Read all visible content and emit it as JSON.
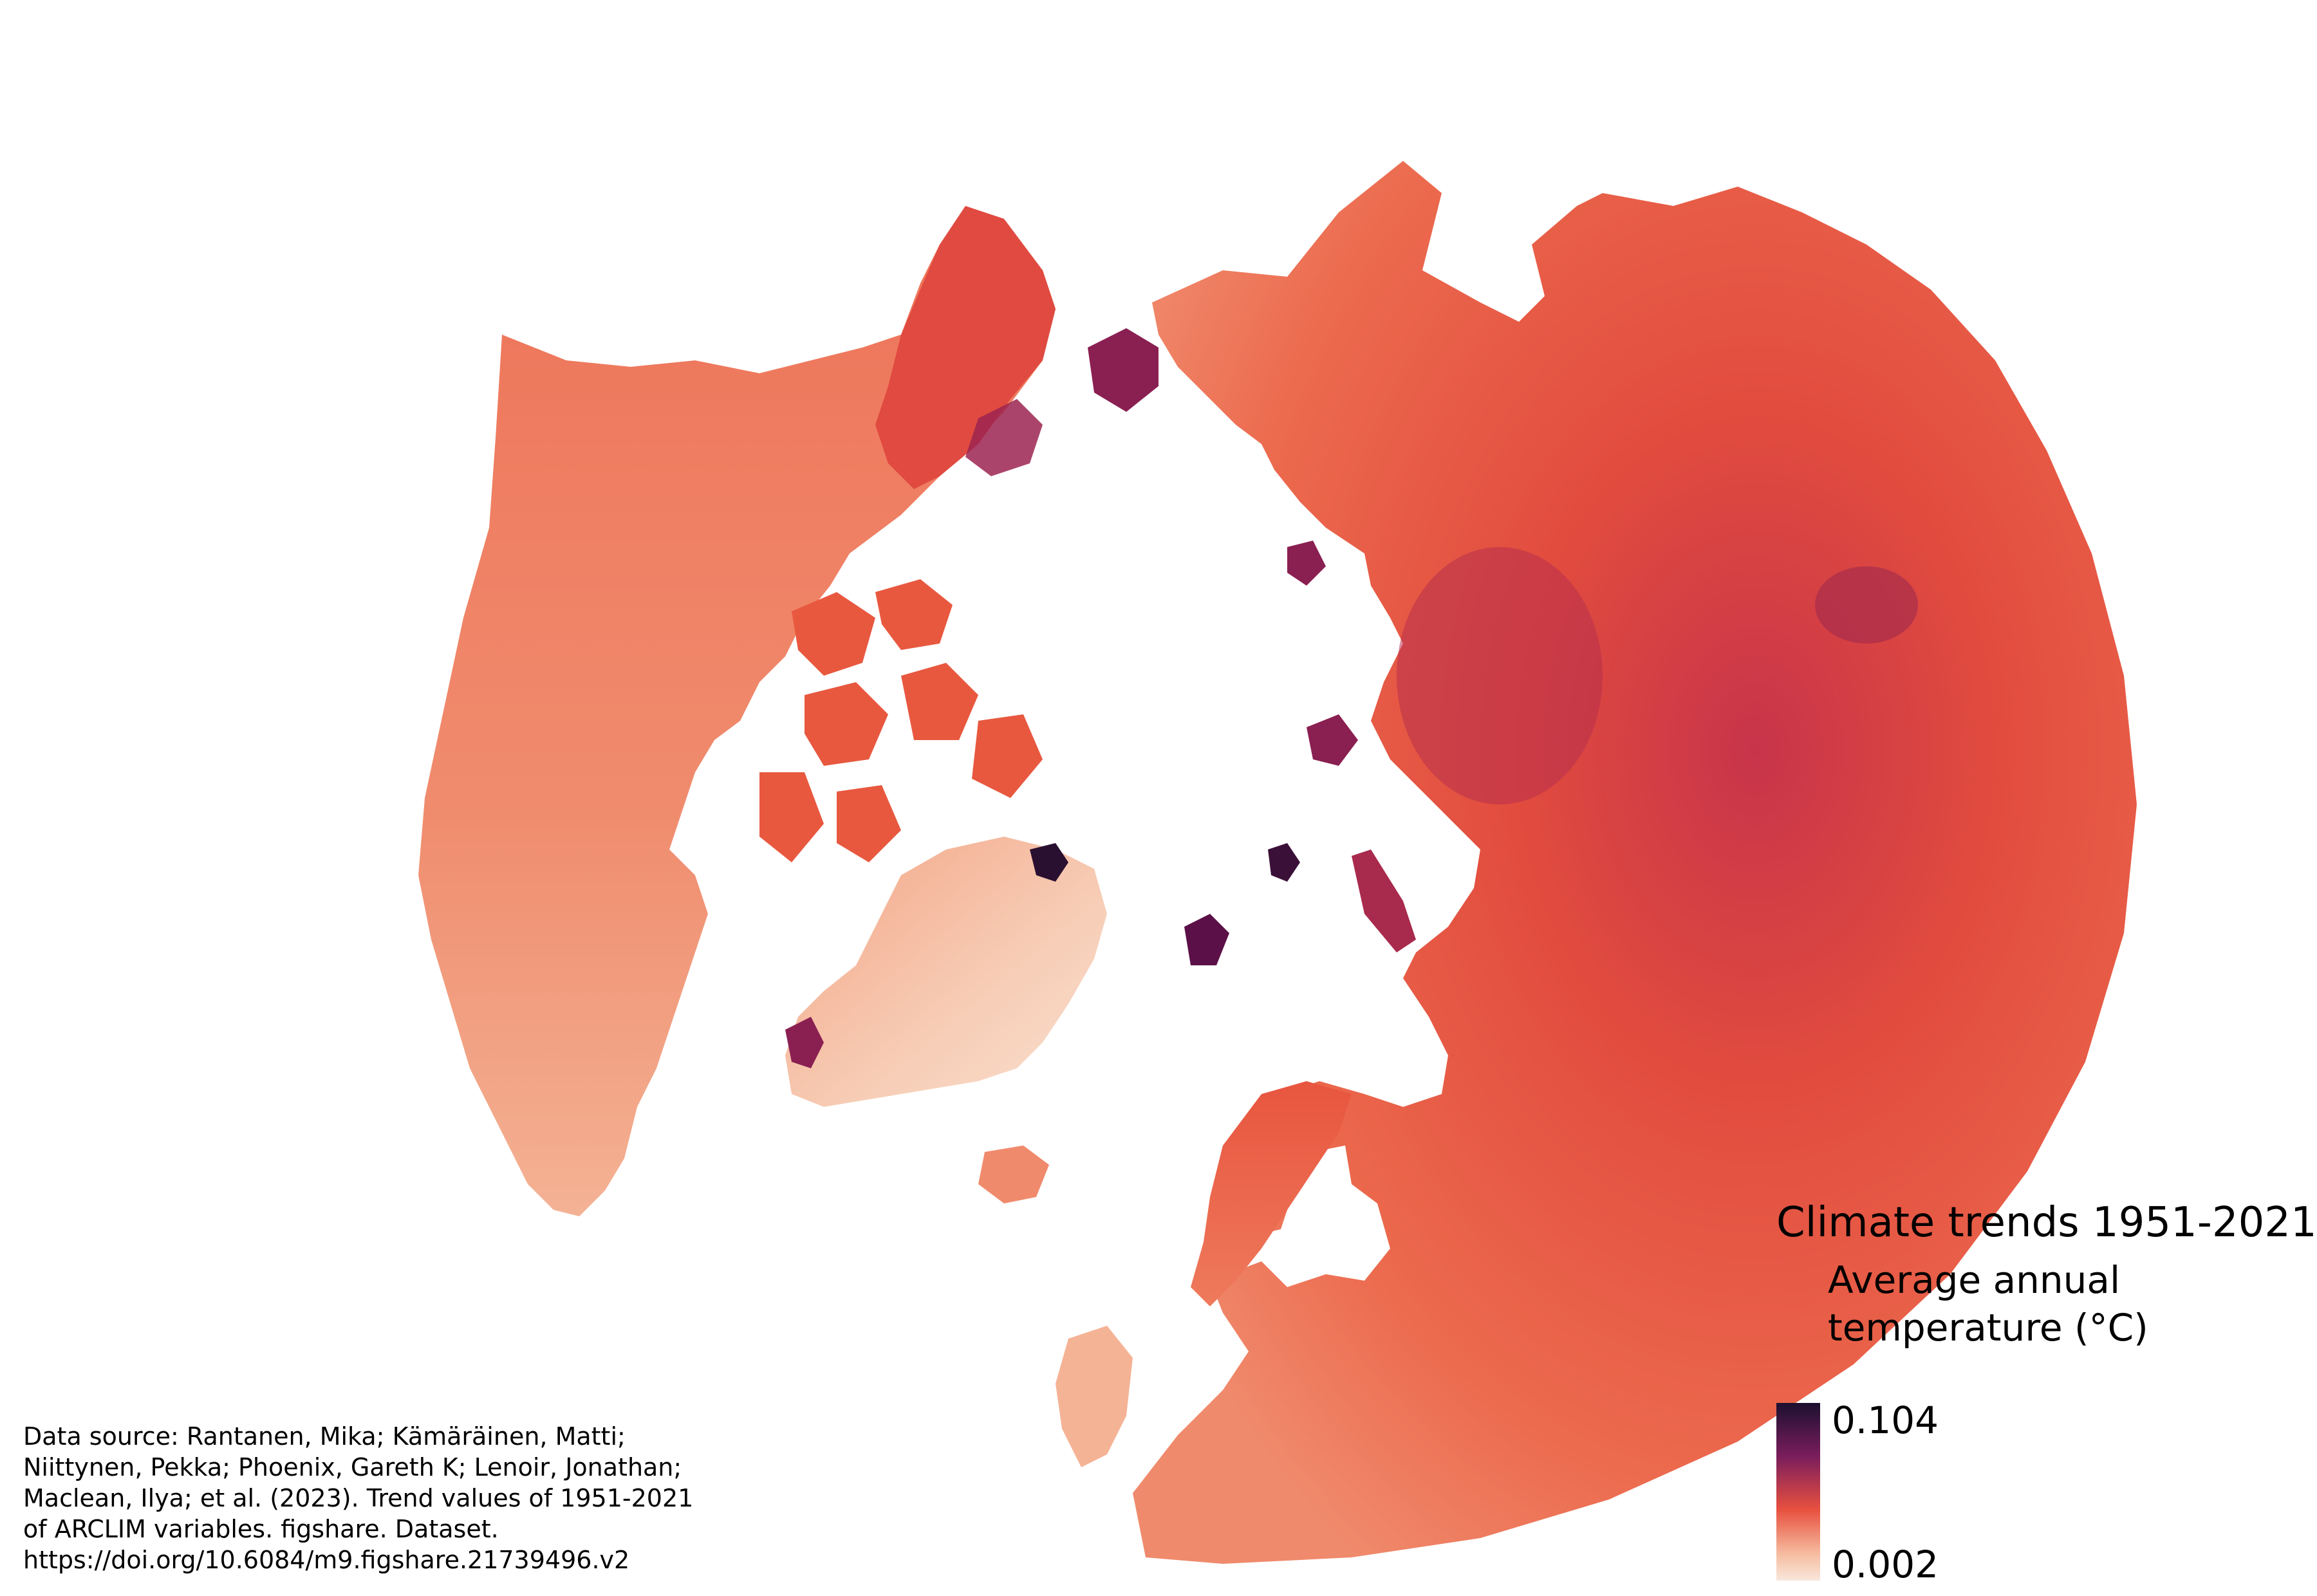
{
  "legend": {
    "title": "Climate trends 1951-2021",
    "subtitle_line1": "Average annual",
    "subtitle_line2": "temperature (°C)",
    "max_label": "0.104",
    "min_label": "0.002",
    "color_max": "#1c1030",
    "color_mid_high": "#7a1d5c",
    "color_mid": "#e8503f",
    "color_low": "#f6bca0",
    "color_min": "#f9e7dc",
    "icon": "color-ramp"
  },
  "map": {
    "projection": "polar-azimuthal-north",
    "ocean_color": "#ffffff",
    "land_base_color": "#ec6a4e",
    "land_warm_color": "#e24c3e",
    "land_cool_color": "#f3a78a",
    "ice_color": "#f7cdb6",
    "hotspot_color": "#5b1048"
  },
  "source": {
    "line1": "Data source: Rantanen, Mika; Kämäräinen, Matti;",
    "line2": "Niittynen, Pekka; Phoenix, Gareth K; Lenoir, Jonathan;",
    "line3": "Maclean, Ilya; et al. (2023). Trend values of 1951-2021",
    "line4": "of ARCLIM variables. figshare. Dataset.",
    "line5": "https://doi.org/10.6084/m9.figshare.21739496.v2"
  }
}
